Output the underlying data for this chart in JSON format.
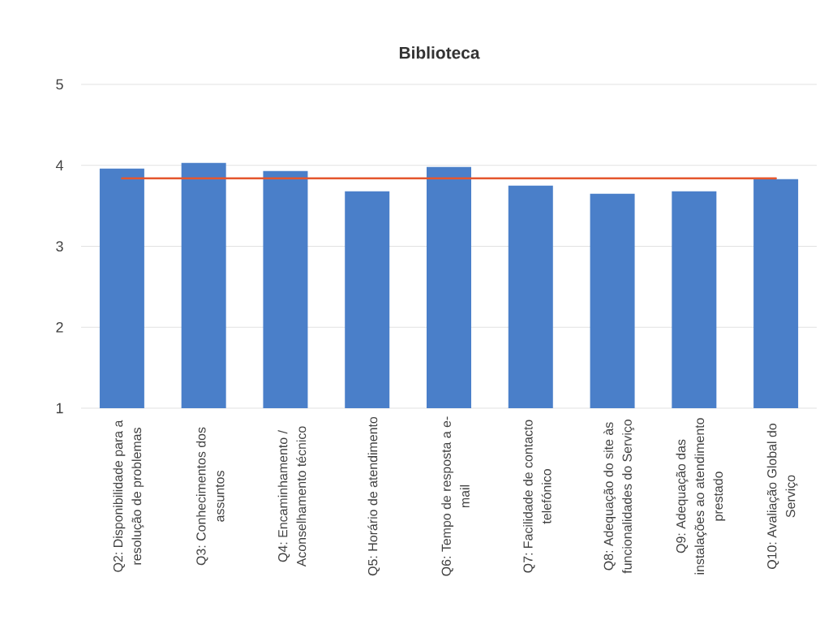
{
  "chart_data": {
    "type": "bar",
    "title": "Biblioteca",
    "categories": [
      "Q2: Disponibilidade para a resolução de problemas",
      "Q3: Conhecimentos dos assuntos",
      "Q4: Encaminhamento / Aconselhamento técnico",
      "Q5: Horário de atendimento",
      "Q6: Tempo de resposta a e-mail",
      "Q7: Facilidade de contacto telefónico",
      "Q8: Adequação do site às funcionalidades do Serviço",
      "Q9: Adequação das instalações ao atendimento prestado",
      "Q10: Avaliação Global do Serviço"
    ],
    "series": [
      {
        "color": "#4a7fc9",
        "values": [
          3.96,
          4.03,
          3.93,
          3.68,
          3.98,
          3.75,
          3.65,
          3.68,
          3.83
        ]
      },
      {
        "type": "line",
        "color": "#e4572e",
        "values": [
          3.84,
          3.84,
          3.84,
          3.84,
          3.84,
          3.84,
          3.84,
          3.84,
          3.84
        ]
      }
    ],
    "ylim": [
      1,
      5
    ],
    "yticks": [
      1,
      2,
      3,
      4,
      5
    ],
    "grid": "y"
  }
}
